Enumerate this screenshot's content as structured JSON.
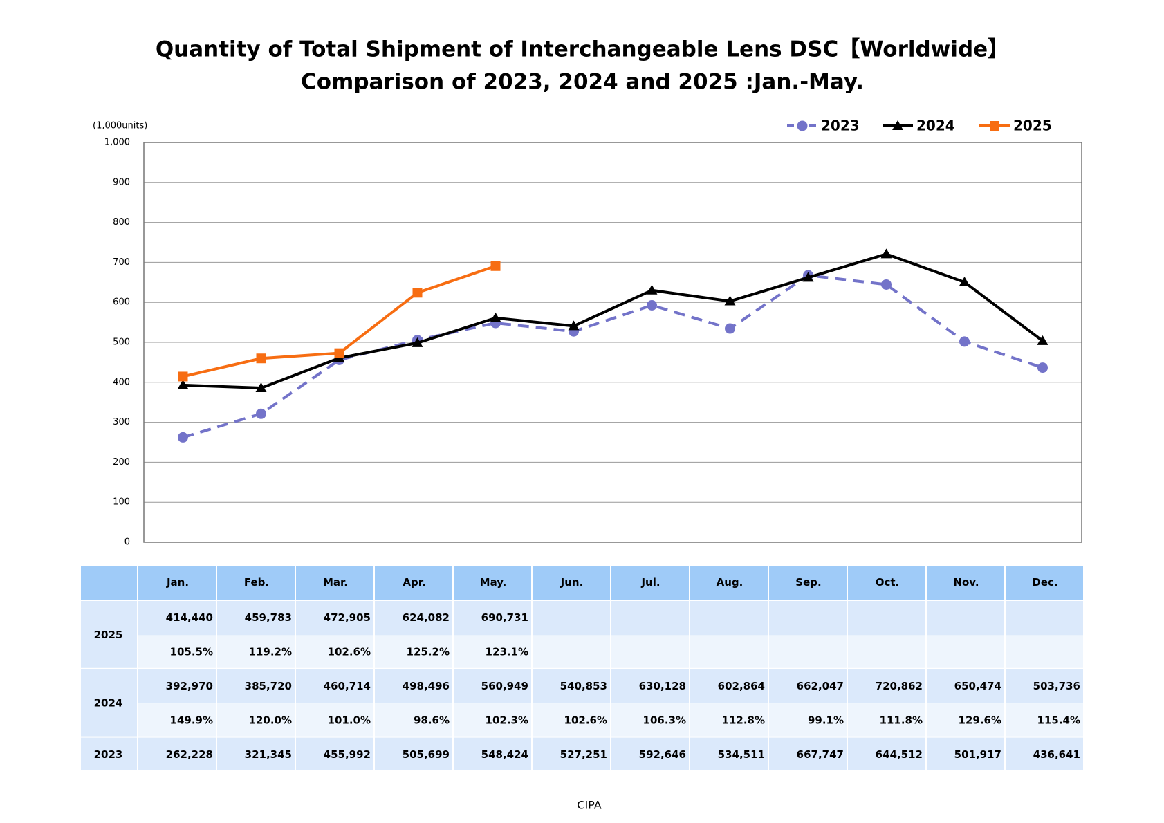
{
  "chart_data": {
    "type": "line",
    "title": [
      "Quantity of Total Shipment of Interchangeable Lens DSC【Worldwide】",
      "Comparison of 2023, 2024 and 2025 :Jan.-May."
    ],
    "y_label": "(1,000units)",
    "categories": [
      "Jan.",
      "Feb.",
      "Mar.",
      "Apr.",
      "May.",
      "Jun.",
      "Jul.",
      "Aug.",
      "Sep.",
      "Oct.",
      "Nov.",
      "Dec."
    ],
    "ylim": [
      0,
      1000
    ],
    "yticks": [
      0,
      100,
      200,
      300,
      400,
      500,
      600,
      700,
      800,
      900,
      {
        "value": 1000,
        "label": "1,000"
      }
    ],
    "grid": true,
    "legend": "top-right",
    "series": [
      {
        "name": "2023",
        "color": "#7373c9",
        "marker": "circle",
        "dashed": true,
        "values": [
          262.228,
          321.345,
          455.992,
          505.699,
          548.424,
          527.251,
          592.646,
          534.511,
          667.747,
          644.512,
          501.917,
          436.641
        ]
      },
      {
        "name": "2024",
        "color": "#000000",
        "marker": "triangle",
        "dashed": false,
        "values": [
          392.97,
          385.72,
          460.714,
          498.496,
          560.949,
          540.853,
          630.128,
          602.864,
          662.047,
          720.862,
          650.474,
          503.736
        ]
      },
      {
        "name": "2025",
        "color": "#f76d12",
        "marker": "square",
        "dashed": false,
        "values": [
          414.44,
          459.783,
          472.905,
          624.082,
          690.731,
          null,
          null,
          null,
          null,
          null,
          null,
          null
        ]
      }
    ]
  },
  "table": {
    "rows": [
      {
        "series": 2,
        "lines": [
          [
            "414,440",
            "459,783",
            "472,905",
            "624,082",
            "690,731"
          ],
          [
            "105.5%",
            "119.2%",
            "102.6%",
            "125.2%",
            "123.1%"
          ]
        ]
      },
      {
        "series": 1,
        "lines": [
          [
            "392,970",
            "385,720",
            "460,714",
            "498,496",
            "560,949",
            "540,853",
            "630,128",
            "602,864",
            "662,047",
            "720,862",
            "650,474",
            "503,736"
          ],
          [
            "149.9%",
            "120.0%",
            "101.0%",
            "98.6%",
            "102.3%",
            "102.6%",
            "106.3%",
            "112.8%",
            "99.1%",
            "111.8%",
            "129.6%",
            "115.4%"
          ]
        ]
      },
      {
        "series": 0,
        "lines": [
          [
            "262,228",
            "321,345",
            "455,992",
            "505,699",
            "548,424",
            "527,251",
            "592,646",
            "534,511",
            "667,747",
            "644,512",
            "501,917",
            "436,641"
          ]
        ]
      }
    ]
  },
  "footer": "CIPA"
}
